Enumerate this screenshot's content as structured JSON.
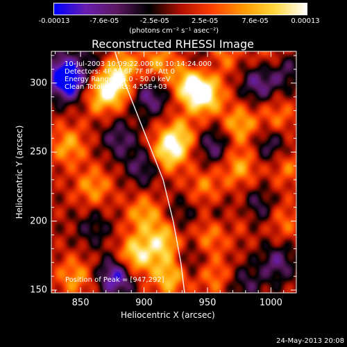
{
  "chart_data": {
    "type": "heatmap",
    "title": "Reconstructed RHESSI Image",
    "xlabel": "Heliocentric X (arcsec)",
    "ylabel": "Heliocentric Y (arcsec)",
    "xlim": [
      827,
      1020
    ],
    "ylim": [
      148,
      323
    ],
    "x_ticks": [
      850,
      900,
      950,
      1000
    ],
    "y_ticks": [
      150,
      200,
      250,
      300
    ],
    "colorbar": {
      "ticks": [
        "-0.00013",
        "-7.6e-05",
        "-2.5e-05",
        "2.5e-05",
        "7.6e-05",
        "0.00013"
      ],
      "units_label": "(photons cm⁻² s⁻¹ asec⁻²)",
      "range": [
        -0.00013,
        0.00013
      ],
      "colors": [
        "#0000ff",
        "#6a1fb0",
        "#5b1860",
        "#000000",
        "#b01000",
        "#ff4000",
        "#ff9a00",
        "#ffd840",
        "#ffffff"
      ]
    },
    "annotations": [
      "10-Jul-2003 10:09:22.000 to 10:14:24.000",
      "Detectors: 4F 5F 6F 7F 8F, Att 0",
      "Energy Range: 25.0 - 50.0 keV",
      "Clean    Total counts: 4.55E+03"
    ],
    "peak_label": "Position of Peak = [947,292]",
    "peak_position": [
      947,
      292
    ],
    "limb_curve": [
      [
        877,
        323
      ],
      [
        885,
        300
      ],
      [
        900,
        265
      ],
      [
        915,
        230
      ],
      [
        923,
        200
      ],
      [
        929,
        170
      ],
      [
        932,
        148
      ]
    ],
    "blobs": [
      {
        "x": 947,
        "y": 292,
        "v": 1.0
      },
      {
        "x": 936,
        "y": 300,
        "v": 0.75
      },
      {
        "x": 918,
        "y": 250,
        "v": 0.85
      },
      {
        "x": 928,
        "y": 262,
        "v": 0.6
      },
      {
        "x": 875,
        "y": 298,
        "v": 0.8
      },
      {
        "x": 882,
        "y": 312,
        "v": 0.55
      },
      {
        "x": 912,
        "y": 315,
        "v": 0.5
      },
      {
        "x": 960,
        "y": 320,
        "v": 0.5
      },
      {
        "x": 1000,
        "y": 318,
        "v": 0.35
      },
      {
        "x": 975,
        "y": 270,
        "v": 0.6
      },
      {
        "x": 975,
        "y": 240,
        "v": 0.55
      },
      {
        "x": 840,
        "y": 255,
        "v": 0.55
      },
      {
        "x": 860,
        "y": 225,
        "v": 0.5
      },
      {
        "x": 865,
        "y": 290,
        "v": 0.45
      },
      {
        "x": 893,
        "y": 175,
        "v": 0.85
      },
      {
        "x": 900,
        "y": 205,
        "v": 0.55
      },
      {
        "x": 915,
        "y": 185,
        "v": 0.75
      },
      {
        "x": 920,
        "y": 160,
        "v": 0.7
      },
      {
        "x": 845,
        "y": 160,
        "v": 0.5
      },
      {
        "x": 948,
        "y": 225,
        "v": 0.4
      },
      {
        "x": 952,
        "y": 190,
        "v": 0.45
      },
      {
        "x": 975,
        "y": 205,
        "v": 0.5
      },
      {
        "x": 955,
        "y": 160,
        "v": 0.4
      },
      {
        "x": 1012,
        "y": 240,
        "v": 0.4
      },
      {
        "x": 1010,
        "y": 200,
        "v": 0.35
      },
      {
        "x": 1005,
        "y": 275,
        "v": 0.4
      },
      {
        "x": 840,
        "y": 300,
        "v": -0.9
      },
      {
        "x": 836,
        "y": 310,
        "v": -0.6
      },
      {
        "x": 878,
        "y": 160,
        "v": -0.9
      },
      {
        "x": 905,
        "y": 290,
        "v": -0.6
      },
      {
        "x": 900,
        "y": 240,
        "v": -0.55
      },
      {
        "x": 880,
        "y": 260,
        "v": -0.5
      },
      {
        "x": 955,
        "y": 255,
        "v": -0.55
      },
      {
        "x": 990,
        "y": 300,
        "v": -0.6
      },
      {
        "x": 1010,
        "y": 310,
        "v": -0.5
      },
      {
        "x": 1000,
        "y": 255,
        "v": -0.5
      },
      {
        "x": 988,
        "y": 210,
        "v": -0.55
      },
      {
        "x": 965,
        "y": 205,
        "v": -0.4
      },
      {
        "x": 1005,
        "y": 170,
        "v": -0.55
      },
      {
        "x": 980,
        "y": 155,
        "v": -0.4
      },
      {
        "x": 930,
        "y": 205,
        "v": -0.3
      },
      {
        "x": 860,
        "y": 195,
        "v": -0.35
      },
      {
        "x": 935,
        "y": 172,
        "v": -0.35
      },
      {
        "x": 948,
        "y": 315,
        "v": -0.4
      },
      {
        "x": 862,
        "y": 318,
        "v": -0.3
      }
    ]
  },
  "footer": {
    "timestamp": "24-May-2013 20:08"
  }
}
